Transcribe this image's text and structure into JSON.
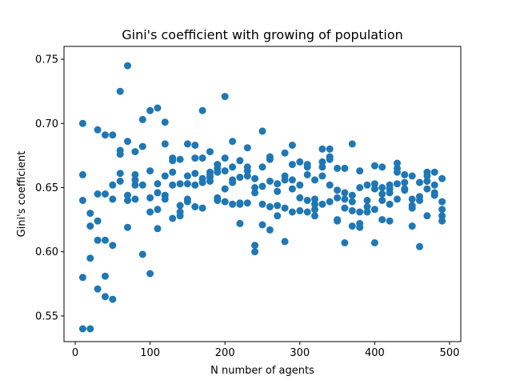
{
  "chart_data": {
    "type": "scatter",
    "title": "Gini's coefficient with growing of population",
    "xlabel": "N number of agents",
    "ylabel": "Gini's coefficient",
    "xlim": [
      -15,
      515
    ],
    "ylim": [
      0.53,
      0.76
    ],
    "xticks": [
      0,
      100,
      200,
      300,
      400,
      500
    ],
    "xtick_labels": [
      "0",
      "100",
      "200",
      "300",
      "400",
      "500"
    ],
    "yticks": [
      0.55,
      0.6,
      0.65,
      0.7,
      0.75
    ],
    "ytick_labels": [
      "0.55",
      "0.60",
      "0.65",
      "0.70",
      "0.75"
    ],
    "grid": false,
    "marker_color": "#1f77b4",
    "points": [
      [
        10,
        0.7
      ],
      [
        10,
        0.66
      ],
      [
        10,
        0.64
      ],
      [
        10,
        0.58
      ],
      [
        10,
        0.54
      ],
      [
        20,
        0.63
      ],
      [
        20,
        0.62
      ],
      [
        20,
        0.595
      ],
      [
        20,
        0.54
      ],
      [
        30,
        0.695
      ],
      [
        30,
        0.645
      ],
      [
        30,
        0.624
      ],
      [
        30,
        0.609
      ],
      [
        30,
        0.571
      ],
      [
        40,
        0.691
      ],
      [
        40,
        0.645
      ],
      [
        40,
        0.609
      ],
      [
        40,
        0.581
      ],
      [
        40,
        0.565
      ],
      [
        50,
        0.691
      ],
      [
        50,
        0.652
      ],
      [
        50,
        0.641
      ],
      [
        50,
        0.605
      ],
      [
        50,
        0.563
      ],
      [
        60,
        0.725
      ],
      [
        60,
        0.679
      ],
      [
        60,
        0.676
      ],
      [
        60,
        0.661
      ],
      [
        60,
        0.655
      ],
      [
        70,
        0.745
      ],
      [
        70,
        0.686
      ],
      [
        70,
        0.644
      ],
      [
        70,
        0.64
      ],
      [
        70,
        0.619
      ],
      [
        80,
        0.678
      ],
      [
        80,
        0.66
      ],
      [
        80,
        0.656
      ],
      [
        80,
        0.652
      ],
      [
        80,
        0.641
      ],
      [
        90,
        0.703
      ],
      [
        90,
        0.682
      ],
      [
        90,
        0.652
      ],
      [
        90,
        0.598
      ],
      [
        100,
        0.71
      ],
      [
        100,
        0.663
      ],
      [
        100,
        0.642
      ],
      [
        100,
        0.631
      ],
      [
        100,
        0.583
      ],
      [
        110,
        0.712
      ],
      [
        110,
        0.653
      ],
      [
        110,
        0.646
      ],
      [
        110,
        0.633
      ],
      [
        110,
        0.618
      ],
      [
        120,
        0.701
      ],
      [
        120,
        0.684
      ],
      [
        120,
        0.659
      ],
      [
        120,
        0.644
      ],
      [
        120,
        0.641
      ],
      [
        130,
        0.673
      ],
      [
        130,
        0.671
      ],
      [
        130,
        0.662
      ],
      [
        130,
        0.652
      ],
      [
        130,
        0.626
      ],
      [
        140,
        0.672
      ],
      [
        140,
        0.653
      ],
      [
        140,
        0.636
      ],
      [
        140,
        0.631
      ],
      [
        140,
        0.628
      ],
      [
        150,
        0.684
      ],
      [
        150,
        0.659
      ],
      [
        150,
        0.653
      ],
      [
        150,
        0.641
      ],
      [
        150,
        0.639
      ],
      [
        160,
        0.683
      ],
      [
        160,
        0.673
      ],
      [
        160,
        0.661
      ],
      [
        160,
        0.652
      ],
      [
        160,
        0.635
      ],
      [
        170,
        0.71
      ],
      [
        170,
        0.673
      ],
      [
        170,
        0.657
      ],
      [
        170,
        0.654
      ],
      [
        170,
        0.634
      ],
      [
        180,
        0.678
      ],
      [
        180,
        0.662
      ],
      [
        180,
        0.66
      ],
      [
        180,
        0.658
      ],
      [
        180,
        0.655
      ],
      [
        190,
        0.668
      ],
      [
        190,
        0.665
      ],
      [
        190,
        0.662
      ],
      [
        190,
        0.642
      ],
      [
        190,
        0.64
      ],
      [
        200,
        0.721
      ],
      [
        200,
        0.673
      ],
      [
        200,
        0.663
      ],
      [
        200,
        0.649
      ],
      [
        200,
        0.639
      ],
      [
        210,
        0.686
      ],
      [
        210,
        0.666
      ],
      [
        210,
        0.656
      ],
      [
        210,
        0.654
      ],
      [
        210,
        0.637
      ],
      [
        220,
        0.671
      ],
      [
        220,
        0.658
      ],
      [
        220,
        0.638
      ],
      [
        220,
        0.637
      ],
      [
        220,
        0.622
      ],
      [
        230,
        0.681
      ],
      [
        230,
        0.666
      ],
      [
        230,
        0.663
      ],
      [
        230,
        0.659
      ],
      [
        230,
        0.638
      ],
      [
        240,
        0.657
      ],
      [
        240,
        0.65
      ],
      [
        240,
        0.646
      ],
      [
        240,
        0.605
      ],
      [
        240,
        0.6
      ],
      [
        250,
        0.694
      ],
      [
        250,
        0.666
      ],
      [
        250,
        0.651
      ],
      [
        250,
        0.637
      ],
      [
        250,
        0.621
      ],
      [
        260,
        0.674
      ],
      [
        260,
        0.672
      ],
      [
        260,
        0.655
      ],
      [
        260,
        0.635
      ],
      [
        260,
        0.617
      ],
      [
        270,
        0.653
      ],
      [
        270,
        0.647
      ],
      [
        270,
        0.636
      ],
      [
        270,
        0.628
      ],
      [
        280,
        0.677
      ],
      [
        280,
        0.659
      ],
      [
        280,
        0.656
      ],
      [
        280,
        0.634
      ],
      [
        280,
        0.608
      ],
      [
        290,
        0.683
      ],
      [
        290,
        0.668
      ],
      [
        290,
        0.656
      ],
      [
        290,
        0.649
      ],
      [
        290,
        0.631
      ],
      [
        300,
        0.67
      ],
      [
        300,
        0.652
      ],
      [
        300,
        0.642
      ],
      [
        300,
        0.632
      ],
      [
        310,
        0.668
      ],
      [
        310,
        0.666
      ],
      [
        310,
        0.66
      ],
      [
        310,
        0.64
      ],
      [
        310,
        0.631
      ],
      [
        320,
        0.656
      ],
      [
        320,
        0.641
      ],
      [
        320,
        0.637
      ],
      [
        320,
        0.633
      ],
      [
        320,
        0.628
      ],
      [
        330,
        0.68
      ],
      [
        330,
        0.67
      ],
      [
        330,
        0.666
      ],
      [
        330,
        0.659
      ],
      [
        330,
        0.637
      ],
      [
        340,
        0.68
      ],
      [
        340,
        0.674
      ],
      [
        340,
        0.672
      ],
      [
        340,
        0.652
      ],
      [
        340,
        0.639
      ],
      [
        350,
        0.665
      ],
      [
        350,
        0.648
      ],
      [
        350,
        0.642
      ],
      [
        350,
        0.625
      ],
      [
        350,
        0.624
      ],
      [
        360,
        0.665
      ],
      [
        360,
        0.646
      ],
      [
        360,
        0.641
      ],
      [
        360,
        0.634
      ],
      [
        360,
        0.607
      ],
      [
        370,
        0.684
      ],
      [
        370,
        0.644
      ],
      [
        370,
        0.639
      ],
      [
        370,
        0.632
      ],
      [
        370,
        0.62
      ],
      [
        380,
        0.663
      ],
      [
        380,
        0.65
      ],
      [
        380,
        0.631
      ],
      [
        380,
        0.622
      ],
      [
        380,
        0.619
      ],
      [
        390,
        0.652
      ],
      [
        390,
        0.64
      ],
      [
        390,
        0.635
      ],
      [
        390,
        0.631
      ],
      [
        400,
        0.667
      ],
      [
        400,
        0.653
      ],
      [
        400,
        0.649
      ],
      [
        400,
        0.633
      ],
      [
        400,
        0.607
      ],
      [
        410,
        0.666
      ],
      [
        410,
        0.65
      ],
      [
        410,
        0.645
      ],
      [
        410,
        0.64
      ],
      [
        410,
        0.625
      ],
      [
        420,
        0.652
      ],
      [
        420,
        0.649
      ],
      [
        420,
        0.646
      ],
      [
        420,
        0.637
      ],
      [
        420,
        0.624
      ],
      [
        430,
        0.669
      ],
      [
        430,
        0.665
      ],
      [
        430,
        0.662
      ],
      [
        430,
        0.653
      ],
      [
        430,
        0.641
      ],
      [
        440,
        0.66
      ],
      [
        440,
        0.654
      ],
      [
        440,
        0.649
      ],
      [
        440,
        0.648
      ],
      [
        450,
        0.659
      ],
      [
        450,
        0.641
      ],
      [
        450,
        0.636
      ],
      [
        450,
        0.634
      ],
      [
        450,
        0.62
      ],
      [
        460,
        0.654
      ],
      [
        460,
        0.643
      ],
      [
        460,
        0.64
      ],
      [
        460,
        0.604
      ],
      [
        470,
        0.662
      ],
      [
        470,
        0.659
      ],
      [
        470,
        0.655
      ],
      [
        470,
        0.649
      ],
      [
        470,
        0.628
      ],
      [
        480,
        0.662
      ],
      [
        480,
        0.652
      ],
      [
        480,
        0.646
      ],
      [
        480,
        0.644
      ],
      [
        490,
        0.657
      ],
      [
        490,
        0.639
      ],
      [
        490,
        0.633
      ],
      [
        490,
        0.628
      ],
      [
        490,
        0.624
      ]
    ]
  }
}
